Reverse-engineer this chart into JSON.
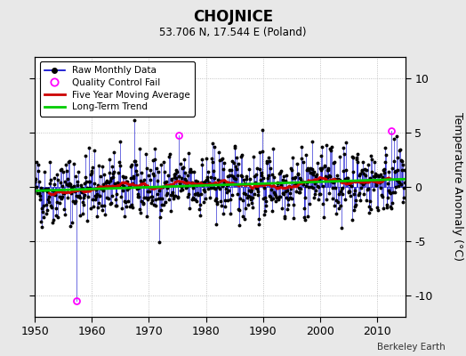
{
  "title": "CHOJNICE",
  "subtitle": "53.706 N, 17.544 E (Poland)",
  "credit": "Berkeley Earth",
  "ylabel": "Temperature Anomaly (°C)",
  "xlim": [
    1950,
    2015
  ],
  "ylim": [
    -12,
    12
  ],
  "yticks": [
    -10,
    -5,
    0,
    5,
    10
  ],
  "xticks": [
    1950,
    1960,
    1970,
    1980,
    1990,
    2000,
    2010
  ],
  "line_color": "#0000cc",
  "dot_color": "#000000",
  "ma_color": "#cc0000",
  "trend_color": "#00cc00",
  "qc_color": "#ff00ff",
  "bg_color": "#e8e8e8",
  "plot_bg": "#ffffff",
  "start_year": 1950,
  "end_year": 2014,
  "qc_fail_indices": [
    87,
    303,
    750
  ],
  "qc_fail_values": [
    -10.5,
    4.8,
    5.2
  ],
  "seed": 42
}
